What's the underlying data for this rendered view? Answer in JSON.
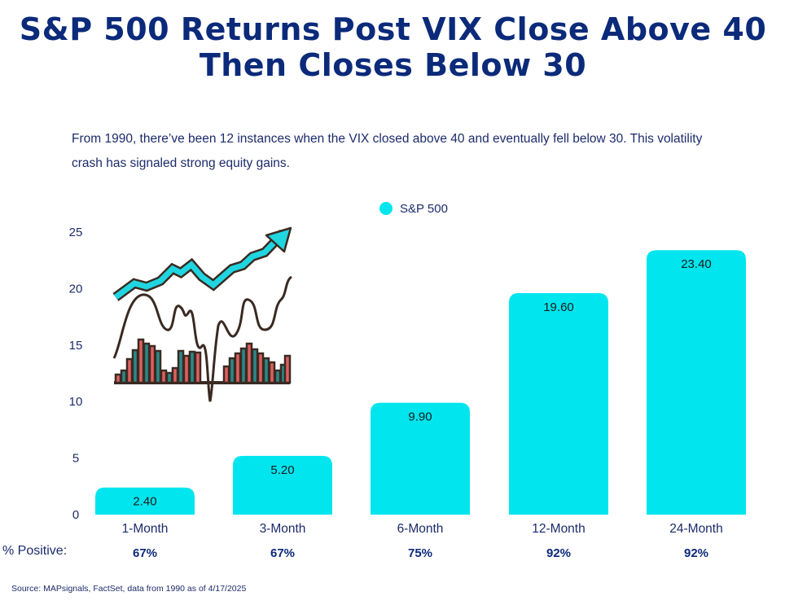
{
  "header": {
    "title": "S&P 500 Returns Post VIX Close Above 40 Then Closes Below 30",
    "subtitle": "From 1990, there’ve been 12 instances when the VIX closed above 40 and eventually fell below 30. This volatility crash has signaled strong equity gains."
  },
  "chart_data": {
    "type": "bar",
    "categories": [
      "1-Month",
      "3-Month",
      "6-Month",
      "12-Month",
      "24-Month"
    ],
    "series": [
      {
        "name": "S&P 500",
        "values": [
          2.4,
          5.2,
          9.9,
          19.6,
          23.4
        ],
        "color": "#00e5ee"
      }
    ],
    "data_labels": [
      "2.40",
      "5.20",
      "9.90",
      "19.60",
      "23.40"
    ],
    "yticks": [
      0,
      5,
      10,
      15,
      20,
      25
    ],
    "ylim": [
      0,
      25
    ],
    "legend_position": "top-center",
    "grid": false,
    "positive_row": {
      "label": "% Positive:",
      "values": [
        "67%",
        "67%",
        "75%",
        "92%",
        "92%"
      ]
    }
  },
  "illustration": {
    "icon": "stock-market-chart-icon",
    "colors": [
      "#1fd6e0",
      "#2a8a8a",
      "#e06060",
      "#3a2a22"
    ]
  },
  "footer": {
    "source": "Source: MAPsignals, FactSet, data from 1990 as of 4/17/2025"
  }
}
